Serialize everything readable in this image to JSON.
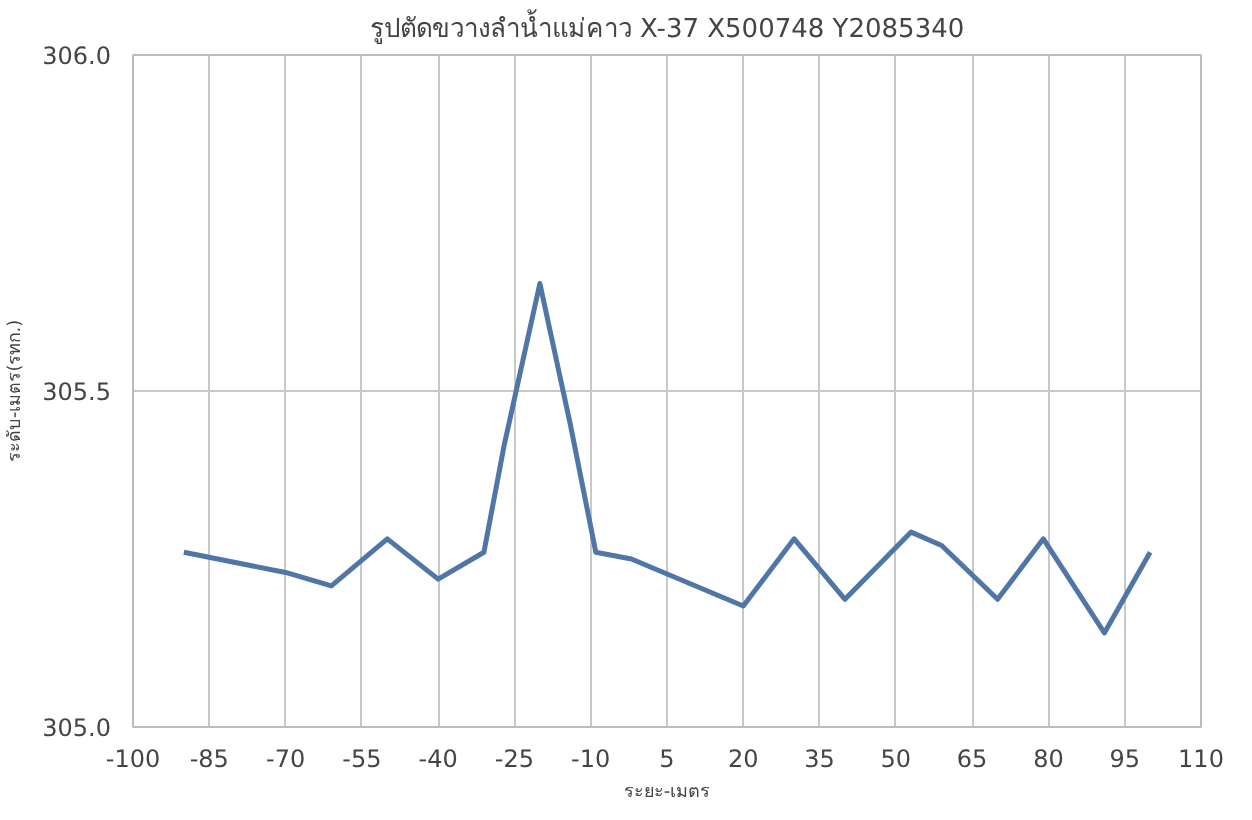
{
  "chart_data": {
    "type": "line",
    "title": "รูปตัดขวางลำน้ำแม่คาว X-37 X500748 Y2085340",
    "xlabel": "ระยะ-เมตร",
    "ylabel": "ระดับ-เมตร(รทก.)",
    "series": [
      {
        "color": "#4f76a6",
        "x": [
          -90,
          -70,
          -61,
          -50,
          -40,
          -31,
          -27,
          -20,
          -14,
          -9,
          -2,
          20,
          30,
          40,
          53,
          59,
          70,
          79,
          91,
          100
        ],
        "values": [
          305.26,
          305.23,
          305.21,
          305.28,
          305.22,
          305.26,
          305.42,
          305.66,
          305.45,
          305.26,
          305.25,
          305.18,
          305.28,
          305.19,
          305.29,
          305.27,
          305.19,
          305.28,
          305.14,
          305.26
        ]
      }
    ],
    "xlim": [
      -100,
      110
    ],
    "xticks": [
      -100,
      -85,
      -70,
      -55,
      -40,
      -25,
      -10,
      5,
      20,
      35,
      50,
      65,
      80,
      95,
      110
    ],
    "ylim": [
      305,
      306
    ],
    "yticks": [
      {
        "value": 305,
        "label": "305.0"
      },
      {
        "value": 305.5,
        "label": "305.5"
      },
      {
        "value": 306,
        "label": "306.0"
      }
    ],
    "grid": true,
    "marker": "none",
    "line_style": "solid"
  }
}
